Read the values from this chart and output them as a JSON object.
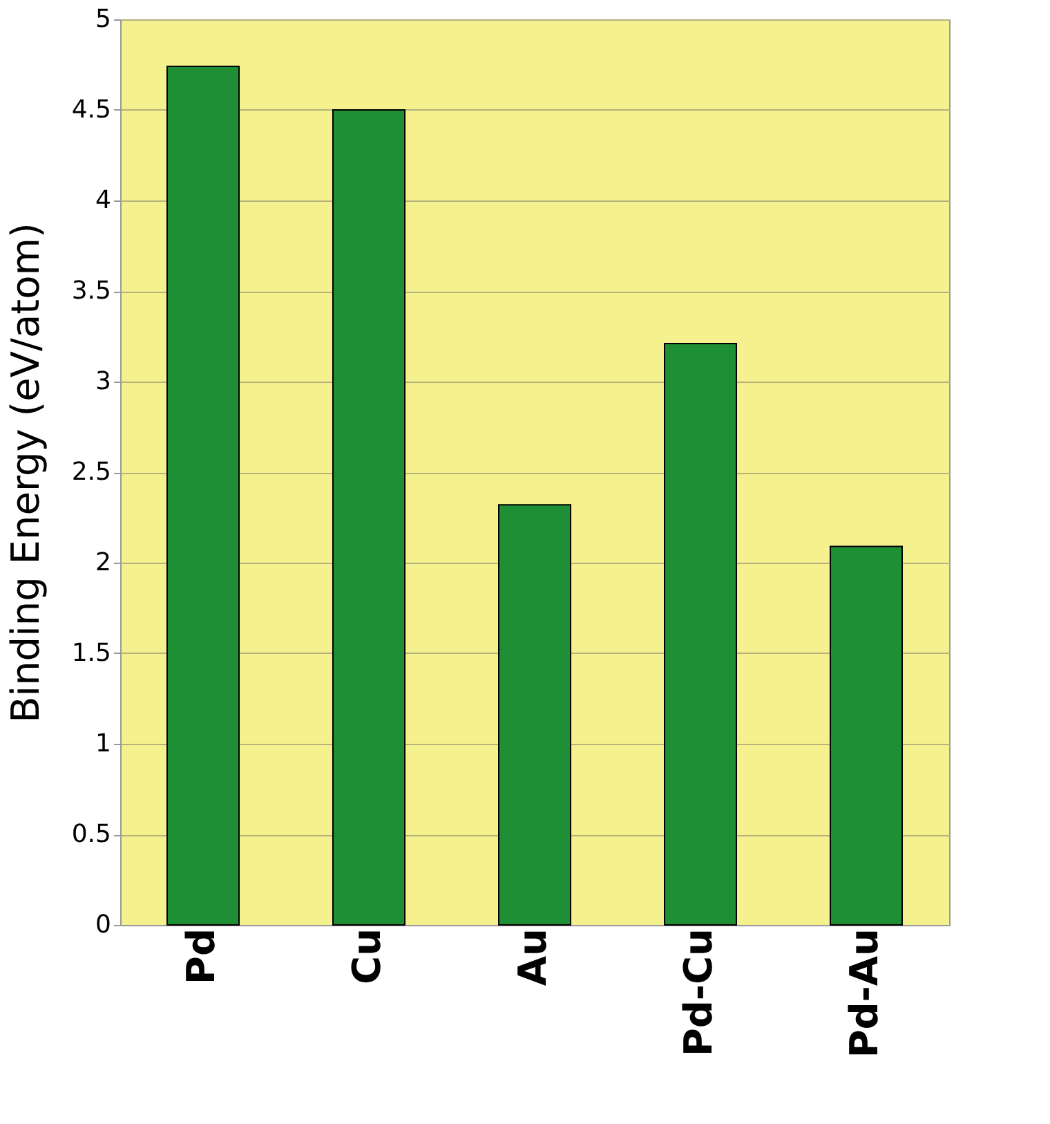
{
  "chart_data": {
    "type": "bar",
    "ylabel": "Binding Energy (eV/atom)",
    "categories": [
      "Pd",
      "Cu",
      "Au",
      "Pd-Cu",
      "Pd-Au"
    ],
    "values": [
      4.74,
      4.5,
      2.32,
      3.21,
      2.09
    ],
    "color": "#1f8f35",
    "ylim": [
      0,
      5
    ],
    "yticks": [
      0,
      0.5,
      1,
      1.5,
      2,
      2.5,
      3,
      3.5,
      4,
      4.5,
      5
    ],
    "grid": "y"
  }
}
